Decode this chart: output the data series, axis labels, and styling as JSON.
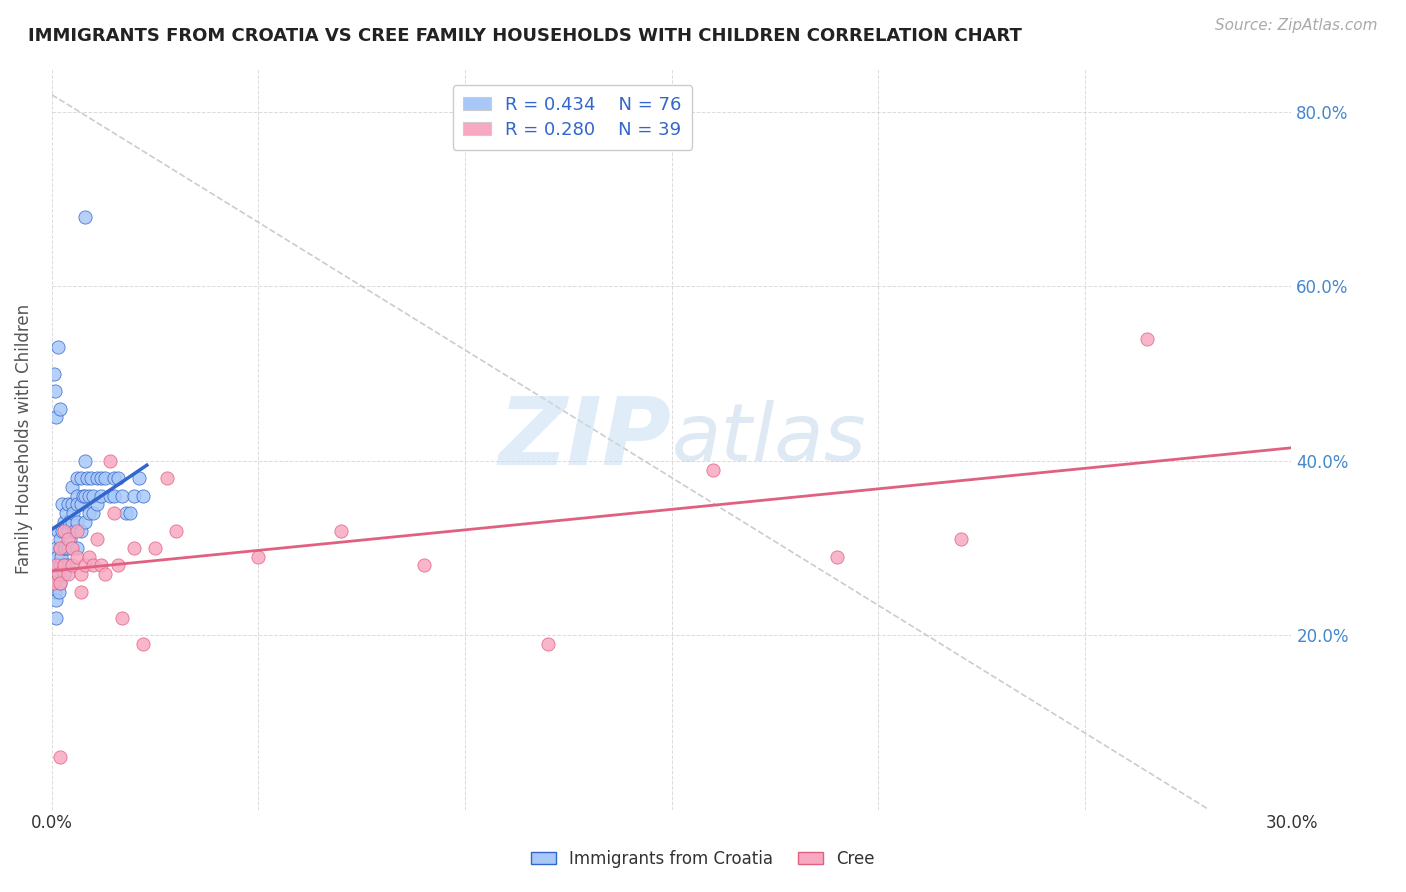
{
  "title": "IMMIGRANTS FROM CROATIA VS CREE FAMILY HOUSEHOLDS WITH CHILDREN CORRELATION CHART",
  "source": "Source: ZipAtlas.com",
  "ylabel": "Family Households with Children",
  "r_croatia": 0.434,
  "n_croatia": 76,
  "r_cree": 0.28,
  "n_cree": 39,
  "xlim": [
    0.0,
    0.3
  ],
  "ylim": [
    0.0,
    0.85
  ],
  "color_croatia": "#a8c8f8",
  "color_cree": "#f8a8c0",
  "line_color_croatia": "#3366cc",
  "line_color_cree": "#e06080",
  "tick_color": "#4488cc",
  "legend_text_color": "#3366cc",
  "watermark_color": "#ddeeff",
  "grid_color": "#cccccc",
  "croatia_x": [
    0.0005,
    0.0008,
    0.001,
    0.001,
    0.001,
    0.001,
    0.0012,
    0.0013,
    0.0015,
    0.0015,
    0.0018,
    0.002,
    0.002,
    0.002,
    0.002,
    0.0022,
    0.0025,
    0.0025,
    0.003,
    0.003,
    0.003,
    0.003,
    0.0032,
    0.0035,
    0.004,
    0.004,
    0.004,
    0.004,
    0.0042,
    0.0045,
    0.005,
    0.005,
    0.005,
    0.005,
    0.0052,
    0.0055,
    0.006,
    0.006,
    0.006,
    0.006,
    0.0062,
    0.007,
    0.007,
    0.007,
    0.0075,
    0.008,
    0.008,
    0.008,
    0.0085,
    0.009,
    0.009,
    0.0095,
    0.01,
    0.01,
    0.011,
    0.011,
    0.012,
    0.012,
    0.013,
    0.014,
    0.015,
    0.015,
    0.016,
    0.017,
    0.018,
    0.019,
    0.02,
    0.021,
    0.022,
    0.0008,
    0.0005,
    0.001,
    0.0015,
    0.002,
    0.008,
    0.003
  ],
  "croatia_y": [
    0.26,
    0.25,
    0.3,
    0.27,
    0.24,
    0.22,
    0.28,
    0.29,
    0.32,
    0.27,
    0.25,
    0.3,
    0.28,
    0.26,
    0.31,
    0.29,
    0.32,
    0.35,
    0.3,
    0.28,
    0.33,
    0.27,
    0.3,
    0.34,
    0.32,
    0.3,
    0.35,
    0.28,
    0.33,
    0.31,
    0.35,
    0.33,
    0.3,
    0.37,
    0.34,
    0.32,
    0.36,
    0.33,
    0.3,
    0.38,
    0.35,
    0.38,
    0.35,
    0.32,
    0.36,
    0.4,
    0.36,
    0.33,
    0.38,
    0.36,
    0.34,
    0.38,
    0.36,
    0.34,
    0.38,
    0.35,
    0.38,
    0.36,
    0.38,
    0.36,
    0.38,
    0.36,
    0.38,
    0.36,
    0.34,
    0.34,
    0.36,
    0.38,
    0.36,
    0.48,
    0.5,
    0.45,
    0.53,
    0.46,
    0.68,
    0.27
  ],
  "cree_x": [
    0.0005,
    0.001,
    0.0015,
    0.002,
    0.002,
    0.003,
    0.003,
    0.004,
    0.004,
    0.005,
    0.005,
    0.006,
    0.006,
    0.007,
    0.007,
    0.008,
    0.009,
    0.01,
    0.011,
    0.012,
    0.013,
    0.014,
    0.015,
    0.016,
    0.017,
    0.02,
    0.022,
    0.025,
    0.028,
    0.03,
    0.05,
    0.07,
    0.09,
    0.12,
    0.16,
    0.19,
    0.22,
    0.265,
    0.002
  ],
  "cree_y": [
    0.26,
    0.28,
    0.27,
    0.3,
    0.26,
    0.28,
    0.32,
    0.31,
    0.27,
    0.28,
    0.3,
    0.29,
    0.32,
    0.27,
    0.25,
    0.28,
    0.29,
    0.28,
    0.31,
    0.28,
    0.27,
    0.4,
    0.34,
    0.28,
    0.22,
    0.3,
    0.19,
    0.3,
    0.38,
    0.32,
    0.29,
    0.32,
    0.28,
    0.19,
    0.39,
    0.29,
    0.31,
    0.54,
    0.06
  ]
}
